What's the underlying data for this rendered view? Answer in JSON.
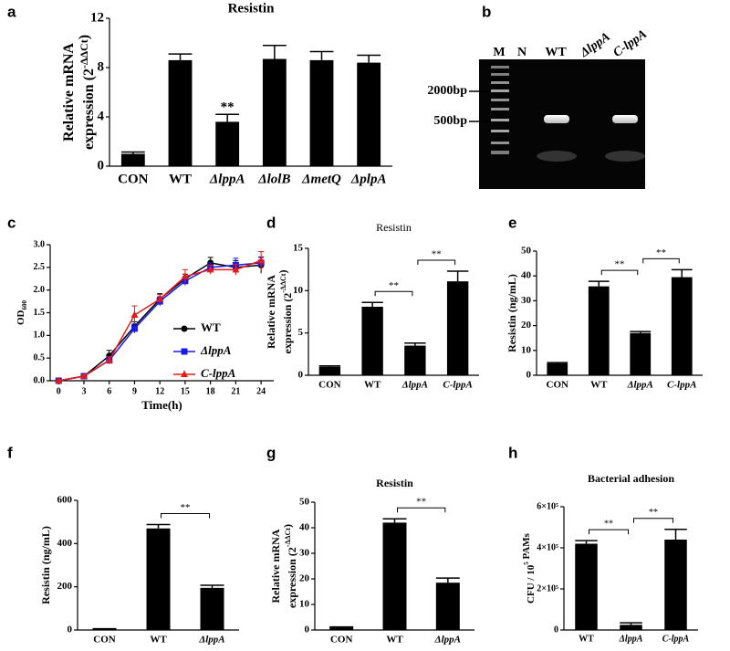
{
  "gel": {
    "panel": "b",
    "lanes": [
      "M",
      "N",
      "WT",
      "ΔlppA",
      "C-lppA"
    ],
    "markers": [
      "2000bp",
      "500bp"
    ]
  },
  "chart_data": [
    {
      "type": "bar",
      "panel": "a",
      "title": "Resistin",
      "ylabel": [
        [
          "Relative mRNA"
        ],
        [
          "expression (2",
          {
            "sup": "-ΔΔCt"
          },
          ")"
        ]
      ],
      "categories": [
        "CON",
        "WT",
        "ΔlppA",
        "ΔlolB",
        "ΔmetQ",
        "ΔplpA"
      ],
      "values": [
        1.0,
        8.6,
        3.6,
        8.7,
        8.6,
        8.4
      ],
      "errors": [
        0.15,
        0.5,
        0.6,
        1.1,
        0.7,
        0.6
      ],
      "color": "#000000",
      "ylim": [
        0,
        12
      ],
      "yticks": [
        0,
        4,
        8,
        12
      ],
      "annotations": [
        {
          "text": "**",
          "categories": [
            "ΔlppA"
          ]
        }
      ]
    },
    {
      "type": "line",
      "panel": "c",
      "xlabel": "Time(h)",
      "ylabel": [
        [
          "OD",
          {
            "sub": "600"
          }
        ]
      ],
      "x": [
        0,
        3,
        6,
        9,
        12,
        15,
        18,
        21,
        24
      ],
      "xlim": [
        -1,
        25.5
      ],
      "xticks": [
        0,
        3,
        6,
        9,
        12,
        15,
        18,
        21,
        24
      ],
      "ylim": [
        0,
        3
      ],
      "yticks": [
        {
          "value": 0,
          "label": "0.0"
        },
        {
          "value": 0.5,
          "label": "0.5"
        },
        {
          "value": 1,
          "label": "1.0"
        },
        {
          "value": 1.5,
          "label": "1.5"
        },
        {
          "value": 2,
          "label": "2.0"
        },
        {
          "value": 2.5,
          "label": "2.5"
        },
        {
          "value": 3,
          "label": "3.0"
        }
      ],
      "legend": "lower right",
      "series": [
        {
          "name": "WT",
          "color": "#000000",
          "marker": "circle",
          "values": [
            0,
            0.1,
            0.55,
            1.2,
            1.8,
            2.25,
            2.6,
            2.5,
            2.55
          ],
          "errors": [
            0.02,
            0.03,
            0.12,
            0.1,
            0.12,
            0.1,
            0.12,
            0.15,
            0.18
          ]
        },
        {
          "name": "ΔlppA",
          "color": "#1a1ae6",
          "marker": "square",
          "values": [
            0,
            0.1,
            0.45,
            1.15,
            1.75,
            2.2,
            2.5,
            2.55,
            2.6
          ],
          "errors": [
            0.02,
            0.03,
            0.06,
            0.1,
            0.1,
            0.1,
            0.1,
            0.15,
            0.12
          ]
        },
        {
          "name": "C-lppA",
          "color": "#e61a1a",
          "marker": "triangle",
          "values": [
            0,
            0.1,
            0.45,
            1.45,
            1.8,
            2.3,
            2.45,
            2.45,
            2.65
          ],
          "errors": [
            0.02,
            0.03,
            0.08,
            0.2,
            0.1,
            0.15,
            0.1,
            0.12,
            0.2
          ]
        }
      ]
    },
    {
      "type": "bar",
      "panel": "d",
      "title": "Resistin",
      "ylabel": [
        [
          "Relative mRNA"
        ],
        [
          "expression (2",
          {
            "sup": "-ΔΔCt"
          },
          ")"
        ]
      ],
      "categories": [
        "CON",
        "WT",
        "ΔlppA",
        "C-lppA"
      ],
      "values": [
        1.0,
        8.1,
        3.5,
        11.1
      ],
      "errors": [
        0.1,
        0.5,
        0.3,
        1.2
      ],
      "color": "#000000",
      "ylim": [
        0,
        15
      ],
      "yticks": [
        0,
        5,
        10,
        15
      ],
      "annotations": [
        {
          "text": "**",
          "categories": [
            "WT",
            "ΔlppA"
          ]
        },
        {
          "text": "**",
          "categories": [
            "ΔlppA",
            "C-lppA"
          ]
        }
      ]
    },
    {
      "type": "bar",
      "panel": "e",
      "ylabel": [
        [
          "Resistin (ng/mL)"
        ]
      ],
      "categories": [
        "CON",
        "WT",
        "ΔlppA",
        "C-lppA"
      ],
      "values": [
        4.8,
        35.8,
        17,
        39.5
      ],
      "errors": [
        0.3,
        2,
        0.6,
        3
      ],
      "color": "#000000",
      "ylim": [
        0,
        50
      ],
      "yticks": [
        0,
        10,
        20,
        30,
        40,
        50
      ],
      "annotations": [
        {
          "text": "**",
          "categories": [
            "WT",
            "ΔlppA"
          ]
        },
        {
          "text": "**",
          "categories": [
            "ΔlppA",
            "C-lppA"
          ]
        }
      ]
    },
    {
      "type": "bar",
      "panel": "f",
      "ylabel": [
        [
          "Resistin (ng/mL)"
        ]
      ],
      "categories": [
        "CON",
        "WT",
        "ΔlppA"
      ],
      "values": [
        5,
        470,
        195
      ],
      "errors": [
        1,
        18,
        12
      ],
      "color": "#000000",
      "ylim": [
        0,
        600
      ],
      "yticks": [
        0,
        200,
        400,
        600
      ],
      "annotations": [
        {
          "text": "**",
          "categories": [
            "WT",
            "ΔlppA"
          ]
        }
      ]
    },
    {
      "type": "bar",
      "panel": "g",
      "title": "Resistin",
      "ylabel": [
        [
          "Relative mRNA"
        ],
        [
          "expression (2",
          {
            "sup": "-ΔΔCt"
          },
          ")"
        ]
      ],
      "categories": [
        "CON",
        "WT",
        "ΔlppA"
      ],
      "values": [
        1,
        42,
        18.5
      ],
      "errors": [
        0.2,
        1.5,
        1.8
      ],
      "color": "#000000",
      "ylim": [
        0,
        50
      ],
      "yticks": [
        0,
        10,
        20,
        30,
        40,
        50
      ],
      "annotations": [
        {
          "text": "**",
          "categories": [
            "WT",
            "ΔlppA"
          ]
        }
      ]
    },
    {
      "type": "bar",
      "panel": "h",
      "title": "Bacterial adhesion",
      "ylabel": [
        [
          "CFU / 10",
          {
            "sup": "5"
          },
          " PAMs"
        ]
      ],
      "categories": [
        "WT",
        "ΔlppA",
        "C-lppA"
      ],
      "values": [
        420000,
        25000,
        440000
      ],
      "errors": [
        15000,
        10000,
        50000
      ],
      "color": "#000000",
      "ylim": [
        0,
        600000
      ],
      "yticks": [
        0,
        {
          "value": 200000,
          "label": "2×10⁵"
        },
        {
          "value": 400000,
          "label": "4×10⁵"
        },
        {
          "value": 600000,
          "label": "6×10⁵"
        }
      ],
      "annotations": [
        {
          "text": "**",
          "categories": [
            "WT",
            "ΔlppA"
          ]
        },
        {
          "text": "**",
          "categories": [
            "ΔlppA",
            "C-lppA"
          ]
        }
      ]
    }
  ]
}
